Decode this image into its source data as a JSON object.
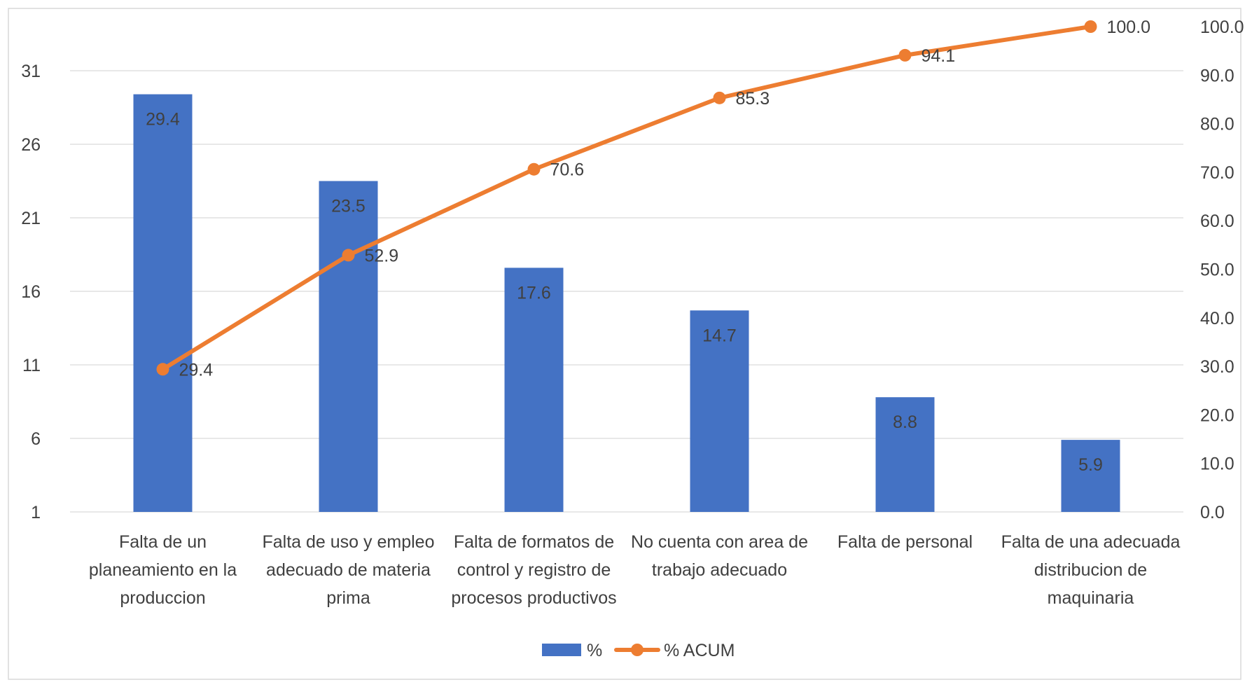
{
  "chart_data": {
    "type": "bar",
    "title": "",
    "xlabel": "",
    "ylabel": "",
    "categories": [
      [
        "Falta de un",
        "planeamiento en la",
        "produccion"
      ],
      [
        "Falta de uso y empleo",
        "adecuado de materia",
        "prima"
      ],
      [
        "Falta de formatos de",
        "control y registro de",
        "procesos productivos"
      ],
      [
        "No cuenta con area de",
        "trabajo adecuado"
      ],
      [
        "Falta de personal"
      ],
      [
        "Falta de una adecuada",
        "distribucion de",
        "maquinaria"
      ]
    ],
    "series": [
      {
        "name": "%",
        "type": "bar",
        "axis": "left",
        "values": [
          29.4,
          23.5,
          17.6,
          14.7,
          8.8,
          5.9
        ],
        "labels": [
          "29.4",
          "23.5",
          "17.6",
          "14.7",
          "8.8",
          "5.9"
        ],
        "color": "#4472C4"
      },
      {
        "name": "% ACUM",
        "type": "line",
        "axis": "right",
        "values": [
          29.4,
          52.9,
          70.6,
          85.3,
          94.1,
          100.0
        ],
        "labels": [
          "29.4",
          "52.9",
          "70.6",
          "85.3",
          "94.1",
          "100.0"
        ],
        "color": "#ED7D31"
      }
    ],
    "y_left": {
      "min": 1,
      "max": 34,
      "ticks": [
        1,
        6,
        11,
        16,
        21,
        26,
        31
      ],
      "tick_labels": [
        "1",
        "6",
        "11",
        "16",
        "21",
        "26",
        "31"
      ]
    },
    "y_right": {
      "min": 0,
      "max": 100,
      "ticks": [
        0,
        10,
        20,
        30,
        40,
        50,
        60,
        70,
        80,
        90,
        100
      ],
      "tick_labels": [
        "0.0",
        "10.0",
        "20.0",
        "30.0",
        "40.0",
        "50.0",
        "60.0",
        "70.0",
        "80.0",
        "90.0",
        "100.0"
      ]
    },
    "grid": true,
    "legend_position": "bottom",
    "colors": {
      "bar": "#4472C4",
      "line": "#ED7D31",
      "grid": "#d9d9d9",
      "text": "#404040",
      "border": "#d9d9d9"
    }
  }
}
